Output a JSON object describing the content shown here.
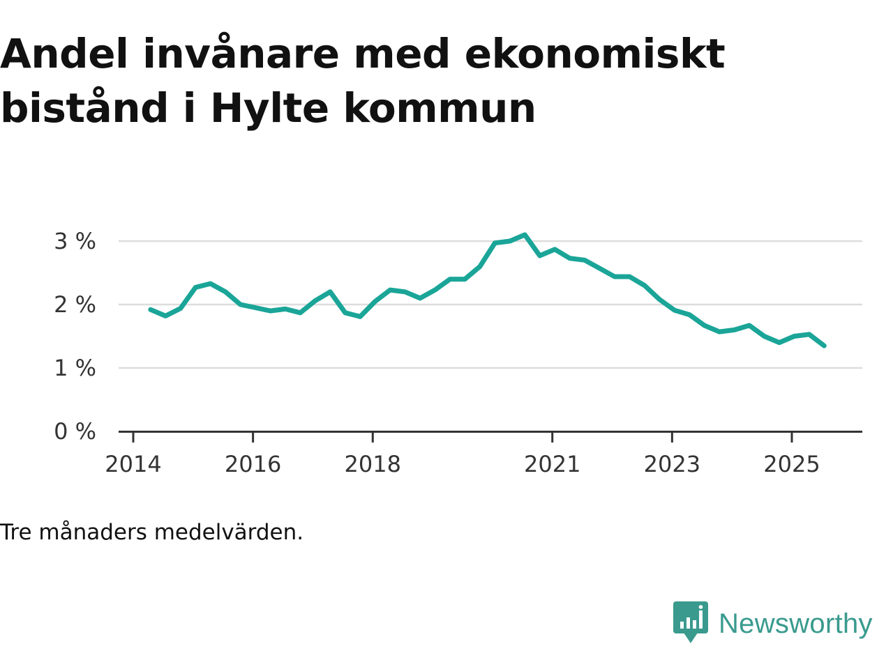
{
  "title": "Andel invånare med ekonomiskt bistånd i Hylte kommun",
  "note": "Tre månaders medelvärden.",
  "brand": {
    "name": "Newsworthy",
    "icon": "newsworthy-logo-icon",
    "color": "#3a9a8e"
  },
  "colors": {
    "line": "#1aa598",
    "grid": "#dddddd",
    "axis": "#333333"
  },
  "chart_data": {
    "type": "line",
    "title": "Andel invånare med ekonomiskt bistånd i Hylte kommun",
    "xlabel": "",
    "ylabel": "",
    "xlim": [
      2013.75,
      2026.17
    ],
    "ylim": [
      0,
      3
    ],
    "y_ticks": [
      0,
      1,
      2,
      3
    ],
    "y_tick_labels": [
      "0 %",
      "1 %",
      "2 %",
      "3 %"
    ],
    "x_ticks": [
      2014,
      2016,
      2018,
      2021,
      2023,
      2025
    ],
    "x_tick_labels": [
      "2014",
      "2016",
      "2018",
      "2021",
      "2023",
      "2025"
    ],
    "grid": true,
    "series": [
      {
        "name": "Andel invånare med ekonomiskt bistånd",
        "color": "#1aa598",
        "x": [
          2014.29,
          2014.54,
          2014.79,
          2015.04,
          2015.29,
          2015.54,
          2015.79,
          2016.04,
          2016.29,
          2016.54,
          2016.79,
          2017.04,
          2017.29,
          2017.54,
          2017.79,
          2018.04,
          2018.29,
          2018.54,
          2018.79,
          2019.04,
          2019.29,
          2019.54,
          2019.79,
          2020.04,
          2020.29,
          2020.54,
          2020.79,
          2021.04,
          2021.29,
          2021.54,
          2021.79,
          2022.04,
          2022.29,
          2022.54,
          2022.79,
          2023.04,
          2023.29,
          2023.54,
          2023.79,
          2024.04,
          2024.29,
          2024.54,
          2024.79,
          2025.04,
          2025.29,
          2025.54
        ],
        "values": [
          1.92,
          1.82,
          1.94,
          2.27,
          2.33,
          2.2,
          2.0,
          1.95,
          1.9,
          1.93,
          1.87,
          2.06,
          2.2,
          1.87,
          1.81,
          2.05,
          2.23,
          2.2,
          2.1,
          2.23,
          2.4,
          2.4,
          2.6,
          2.97,
          3.0,
          3.1,
          2.77,
          2.87,
          2.73,
          2.7,
          2.57,
          2.44,
          2.44,
          2.3,
          2.08,
          1.91,
          1.84,
          1.67,
          1.57,
          1.6,
          1.67,
          1.5,
          1.4,
          1.5,
          1.53,
          1.35
        ]
      }
    ]
  }
}
